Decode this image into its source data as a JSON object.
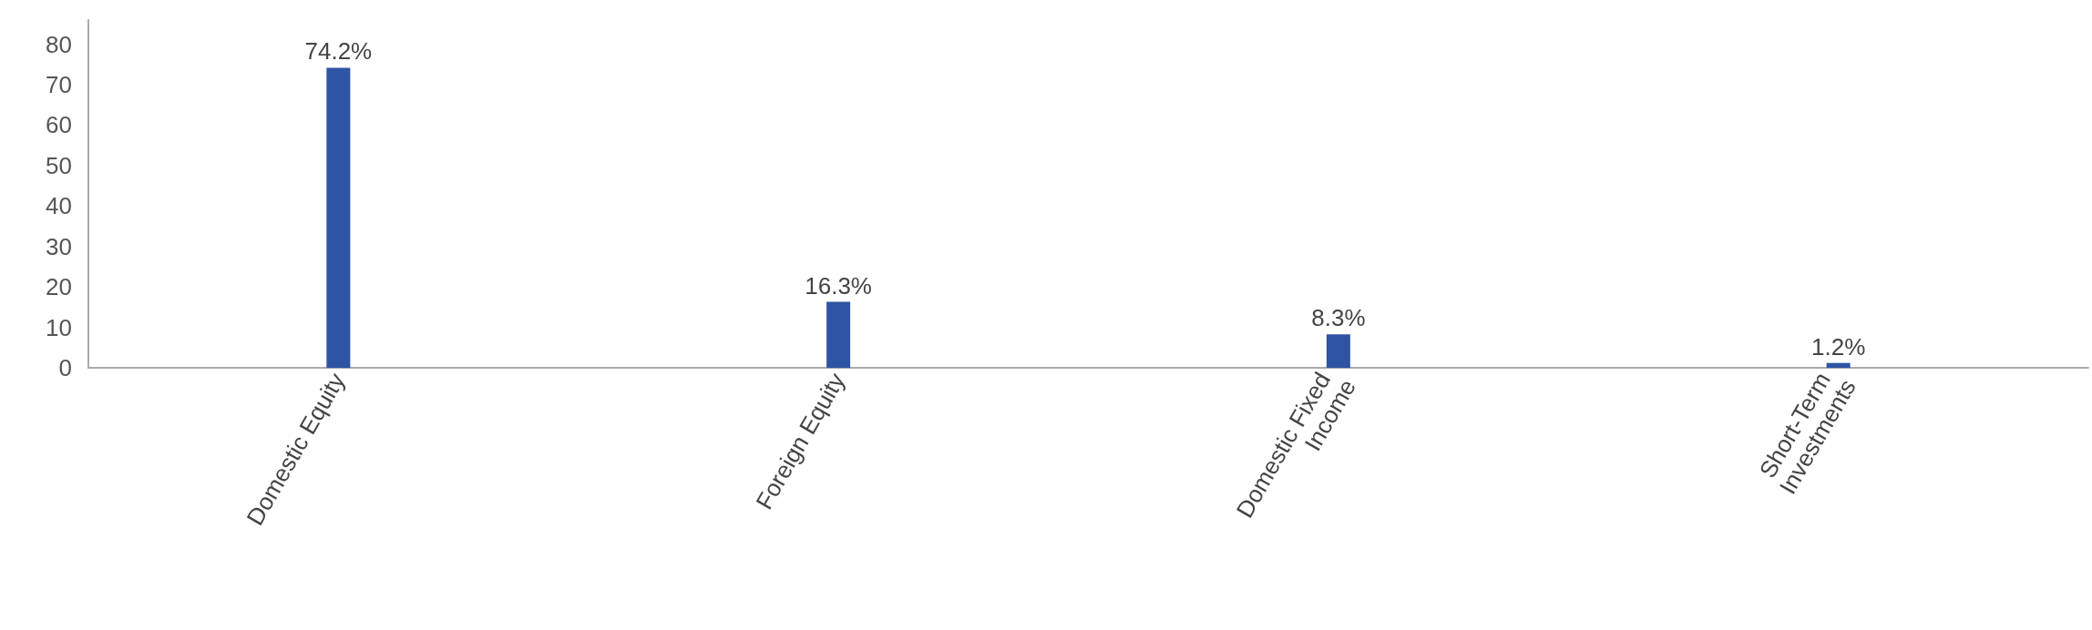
{
  "chart_data": {
    "type": "bar",
    "categories": [
      "Domestic Equity",
      "Foreign Equity",
      "Domestic Fixed Income",
      "Short-Term Investments"
    ],
    "values": [
      74.2,
      16.3,
      8.3,
      1.2
    ],
    "value_labels": [
      "74.2%",
      "16.3%",
      "8.3%",
      "1.2%"
    ],
    "color": "#2e54a4",
    "ylim": [
      0,
      86
    ],
    "yticks": [
      0,
      10,
      20,
      30,
      40,
      50,
      60,
      70,
      80
    ],
    "grid": false
  }
}
